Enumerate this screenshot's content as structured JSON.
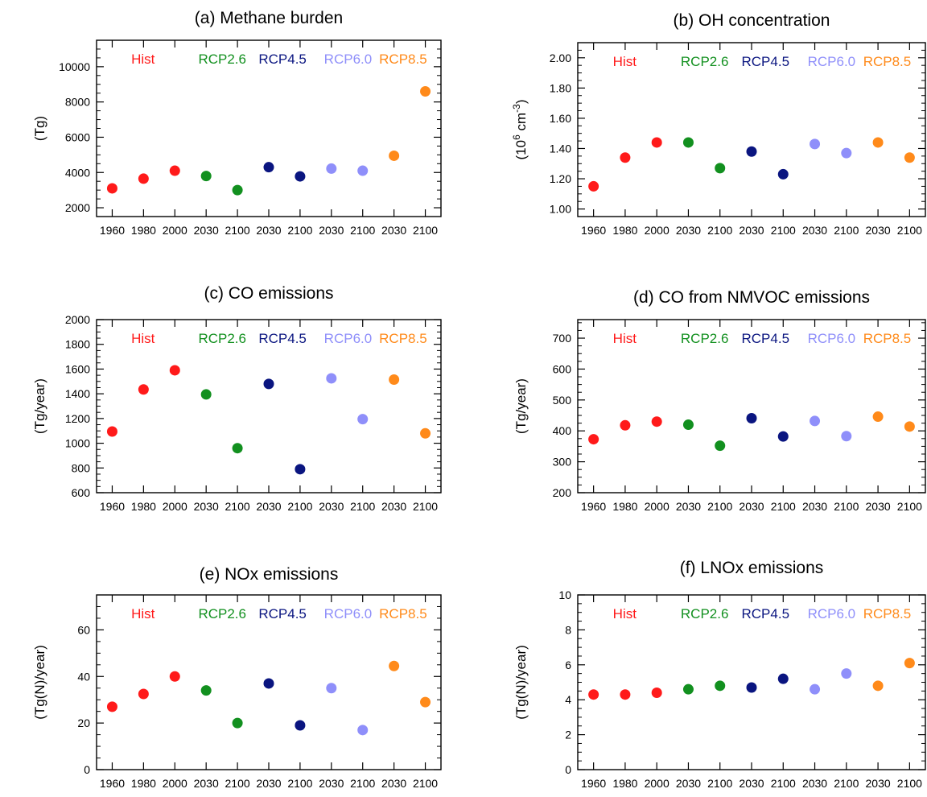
{
  "legend": [
    {
      "label": "Hist",
      "color": "#ff1a1a"
    },
    {
      "label": "RCP2.6",
      "color": "#12901f"
    },
    {
      "label": "RCP4.5",
      "color": "#0a1580"
    },
    {
      "label": "RCP6.0",
      "color": "#8f8ffa"
    },
    {
      "label": "RCP8.5",
      "color": "#ff8a1a"
    }
  ],
  "chart_data": [
    {
      "type": "scatter",
      "title": "(a) Methane burden",
      "ylabel": "(Tg)",
      "categories": [
        "1960",
        "1980",
        "2000",
        "2030",
        "2100",
        "2030",
        "2100",
        "2030",
        "2100",
        "2030",
        "2100"
      ],
      "groups": [
        "Hist",
        "Hist",
        "Hist",
        "RCP2.6",
        "RCP2.6",
        "RCP4.5",
        "RCP4.5",
        "RCP6.0",
        "RCP6.0",
        "RCP8.5",
        "RCP8.5"
      ],
      "values": [
        3100,
        3650,
        4100,
        3800,
        3000,
        4300,
        3780,
        4220,
        4100,
        4950,
        8600
      ],
      "ylim": [
        1500,
        11500
      ],
      "yticks": [
        2000,
        4000,
        6000,
        8000,
        10000
      ],
      "ytick_labels": [
        "2000",
        "4000",
        "6000",
        "8000",
        "10000"
      ],
      "minor_step": 500,
      "grid": false
    },
    {
      "type": "scatter",
      "title": "(b) OH concentration",
      "ylabel": "(10^6 cm^-3)",
      "categories": [
        "1960",
        "1980",
        "2000",
        "2030",
        "2100",
        "2030",
        "2100",
        "2030",
        "2100",
        "2030",
        "2100"
      ],
      "groups": [
        "Hist",
        "Hist",
        "Hist",
        "RCP2.6",
        "RCP2.6",
        "RCP4.5",
        "RCP4.5",
        "RCP6.0",
        "RCP6.0",
        "RCP8.5",
        "RCP8.5"
      ],
      "values": [
        1.15,
        1.34,
        1.44,
        1.44,
        1.27,
        1.38,
        1.23,
        1.43,
        1.37,
        1.44,
        1.34
      ],
      "ylim": [
        0.95,
        2.1
      ],
      "yticks": [
        1.0,
        1.2,
        1.4,
        1.6,
        1.8,
        2.0
      ],
      "ytick_labels": [
        "1.00",
        "1.20",
        "1.40",
        "1.60",
        "1.80",
        "2.00"
      ],
      "minor_step": 0.05,
      "grid": false
    },
    {
      "type": "scatter",
      "title": "(c) CO emissions",
      "ylabel": "(Tg/year)",
      "categories": [
        "1960",
        "1980",
        "2000",
        "2030",
        "2100",
        "2030",
        "2100",
        "2030",
        "2100",
        "2030",
        "2100"
      ],
      "groups": [
        "Hist",
        "Hist",
        "Hist",
        "RCP2.6",
        "RCP2.6",
        "RCP4.5",
        "RCP4.5",
        "RCP6.0",
        "RCP6.0",
        "RCP8.5",
        "RCP8.5"
      ],
      "values": [
        1095,
        1435,
        1590,
        1395,
        960,
        1480,
        790,
        1525,
        1195,
        1515,
        1080
      ],
      "ylim": [
        600,
        2000
      ],
      "yticks": [
        600,
        800,
        1000,
        1200,
        1400,
        1600,
        1800,
        2000
      ],
      "ytick_labels": [
        "600",
        "800",
        "1000",
        "1200",
        "1400",
        "1600",
        "1800",
        "2000"
      ],
      "minor_step": 50,
      "grid": false
    },
    {
      "type": "scatter",
      "title": "(d) CO from NMVOC emissions",
      "ylabel": "(Tg/year)",
      "categories": [
        "1960",
        "1980",
        "2000",
        "2030",
        "2100",
        "2030",
        "2100",
        "2030",
        "2100",
        "2030",
        "2100"
      ],
      "groups": [
        "Hist",
        "Hist",
        "Hist",
        "RCP2.6",
        "RCP2.6",
        "RCP4.5",
        "RCP4.5",
        "RCP6.0",
        "RCP6.0",
        "RCP8.5",
        "RCP8.5"
      ],
      "values": [
        373,
        418,
        430,
        420,
        352,
        441,
        382,
        432,
        383,
        446,
        414
      ],
      "ylim": [
        200,
        760
      ],
      "yticks": [
        200,
        300,
        400,
        500,
        600,
        700
      ],
      "ytick_labels": [
        "200",
        "300",
        "400",
        "500",
        "600",
        "700"
      ],
      "minor_step": 25,
      "grid": false
    },
    {
      "type": "scatter",
      "title": "(e) NOx emissions",
      "ylabel": "(Tg(N)/year)",
      "categories": [
        "1960",
        "1980",
        "2000",
        "2030",
        "2100",
        "2030",
        "2100",
        "2030",
        "2100",
        "2030",
        "2100"
      ],
      "groups": [
        "Hist",
        "Hist",
        "Hist",
        "RCP2.6",
        "RCP2.6",
        "RCP4.5",
        "RCP4.5",
        "RCP6.0",
        "RCP6.0",
        "RCP8.5",
        "RCP8.5"
      ],
      "values": [
        27,
        32.5,
        40,
        34,
        20,
        37,
        19,
        35,
        17,
        44.5,
        29
      ],
      "ylim": [
        0,
        75
      ],
      "yticks": [
        0,
        20,
        40,
        60
      ],
      "ytick_labels": [
        "0",
        "20",
        "40",
        "60"
      ],
      "minor_step": 5,
      "grid": false
    },
    {
      "type": "scatter",
      "title": "(f) LNOx emissions",
      "ylabel": "(Tg(N)/year)",
      "categories": [
        "1960",
        "1980",
        "2000",
        "2030",
        "2100",
        "2030",
        "2100",
        "2030",
        "2100",
        "2030",
        "2100"
      ],
      "groups": [
        "Hist",
        "Hist",
        "Hist",
        "RCP2.6",
        "RCP2.6",
        "RCP4.5",
        "RCP4.5",
        "RCP6.0",
        "RCP6.0",
        "RCP8.5",
        "RCP8.5"
      ],
      "values": [
        4.3,
        4.3,
        4.4,
        4.6,
        4.8,
        4.7,
        5.2,
        4.6,
        5.5,
        4.8,
        6.1
      ],
      "ylim": [
        0,
        10
      ],
      "yticks": [
        0,
        2,
        4,
        6,
        8,
        10
      ],
      "ytick_labels": [
        "0",
        "2",
        "4",
        "6",
        "8",
        "10"
      ],
      "minor_step": 0.5,
      "grid": false
    }
  ]
}
